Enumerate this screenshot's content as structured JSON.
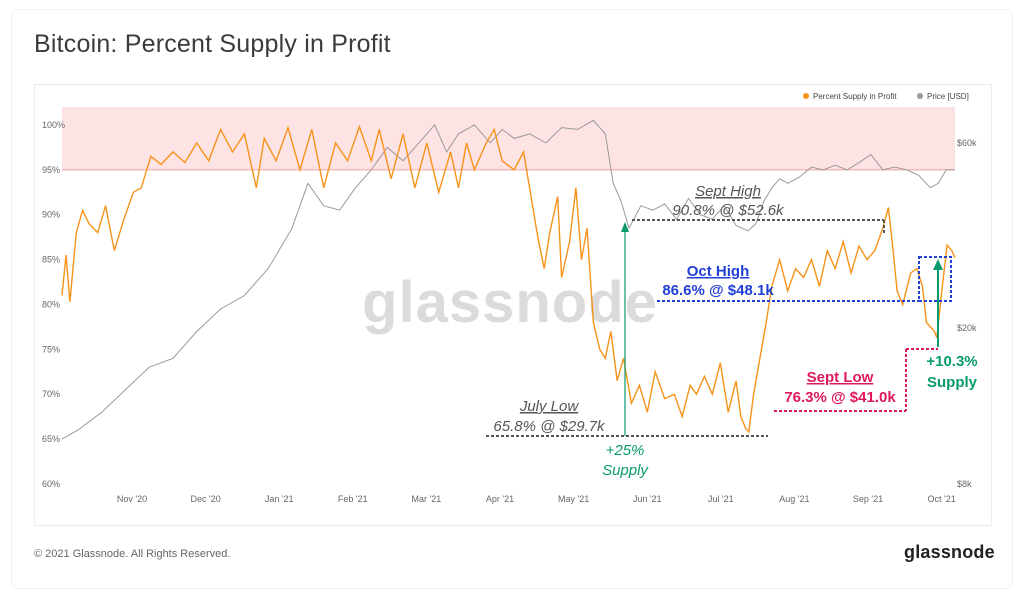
{
  "header": {
    "title": "Bitcoin: Percent Supply in Profit"
  },
  "footer": {
    "copyright": "© 2021 Glassnode. All Rights Reserved.",
    "brand": "glassnode"
  },
  "watermark": "glassnode",
  "colors": {
    "supply": "#F7931A",
    "price": "#9a9a9a",
    "band": "#fde3e3",
    "band_line": "#f0a0a0",
    "sept_high": "#555555",
    "oct_high": "#1f3fd6",
    "sept_low": "#e0195f",
    "green": "#0a9a6e"
  },
  "chart_data": {
    "type": "line",
    "title": "Bitcoin: Percent Supply in Profit",
    "legend": [
      "Percent Supply in Profit",
      "Price [USD]"
    ],
    "x_ticks": [
      "Nov '20",
      "Dec '20",
      "Jan '21",
      "Feb '21",
      "Mar '21",
      "Apr '21",
      "May '21",
      "Jun '21",
      "Jul '21",
      "Aug '21",
      "Sep '21",
      "Oct '21"
    ],
    "y_left": {
      "ticks": [
        "60%",
        "65%",
        "70%",
        "75%",
        "80%",
        "85%",
        "90%",
        "95%",
        "100%"
      ],
      "range": [
        60,
        103
      ]
    },
    "y_right": {
      "ticks": [
        "$8k",
        "$20k",
        "$60k"
      ],
      "scale": "log"
    },
    "highlight_band": {
      "from": 95,
      "to": 102
    },
    "series": [
      {
        "name": "Percent Supply in Profit",
        "axis": "left",
        "points": [
          [
            0,
            81
          ],
          [
            0.05,
            85.5
          ],
          [
            0.1,
            80.3
          ],
          [
            0.18,
            88
          ],
          [
            0.26,
            90.5
          ],
          [
            0.34,
            89
          ],
          [
            0.45,
            88
          ],
          [
            0.55,
            91
          ],
          [
            0.66,
            86
          ],
          [
            0.78,
            89.5
          ],
          [
            0.9,
            92.5
          ],
          [
            1.0,
            93
          ],
          [
            1.12,
            96.5
          ],
          [
            1.25,
            95.6
          ],
          [
            1.4,
            97
          ],
          [
            1.55,
            95.8
          ],
          [
            1.7,
            98
          ],
          [
            1.85,
            96
          ],
          [
            2.0,
            99.5
          ],
          [
            2.15,
            97
          ],
          [
            2.3,
            99
          ],
          [
            2.45,
            93
          ],
          [
            2.55,
            98.5
          ],
          [
            2.7,
            96
          ],
          [
            2.85,
            99.7
          ],
          [
            3.0,
            95
          ],
          [
            3.15,
            99.5
          ],
          [
            3.3,
            93
          ],
          [
            3.45,
            98
          ],
          [
            3.6,
            96
          ],
          [
            3.75,
            99.8
          ],
          [
            3.9,
            96
          ],
          [
            4.0,
            99.5
          ],
          [
            4.15,
            94
          ],
          [
            4.3,
            99
          ],
          [
            4.45,
            93
          ],
          [
            4.6,
            98
          ],
          [
            4.75,
            92.5
          ],
          [
            4.9,
            97
          ],
          [
            5.0,
            93
          ],
          [
            5.1,
            98
          ],
          [
            5.2,
            95
          ],
          [
            5.35,
            98
          ],
          [
            5.45,
            99.5
          ],
          [
            5.55,
            96
          ],
          [
            5.7,
            95
          ],
          [
            5.82,
            97
          ],
          [
            6.0,
            87.5
          ],
          [
            6.08,
            84
          ],
          [
            6.15,
            88
          ],
          [
            6.25,
            92
          ],
          [
            6.3,
            83
          ],
          [
            6.4,
            87
          ],
          [
            6.48,
            93
          ],
          [
            6.55,
            85
          ],
          [
            6.62,
            88.5
          ],
          [
            6.7,
            78
          ],
          [
            6.78,
            75
          ],
          [
            6.85,
            74
          ],
          [
            6.92,
            77
          ],
          [
            7.0,
            71.5
          ],
          [
            7.08,
            74
          ],
          [
            7.18,
            69
          ],
          [
            7.28,
            71
          ],
          [
            7.38,
            68
          ],
          [
            7.48,
            72.5
          ],
          [
            7.6,
            69.5
          ],
          [
            7.72,
            70
          ],
          [
            7.82,
            67.5
          ],
          [
            7.92,
            71
          ],
          [
            8.0,
            70
          ],
          [
            8.1,
            72
          ],
          [
            8.2,
            70
          ],
          [
            8.3,
            73.5
          ],
          [
            8.4,
            68
          ],
          [
            8.5,
            71.5
          ],
          [
            8.56,
            67.5
          ],
          [
            8.62,
            66.2
          ],
          [
            8.66,
            65.8
          ],
          [
            8.72,
            70
          ],
          [
            8.8,
            74
          ],
          [
            8.88,
            78
          ],
          [
            8.95,
            82
          ],
          [
            9.05,
            85
          ],
          [
            9.15,
            81.5
          ],
          [
            9.25,
            84
          ],
          [
            9.35,
            83
          ],
          [
            9.45,
            85
          ],
          [
            9.55,
            82
          ],
          [
            9.65,
            86
          ],
          [
            9.75,
            84
          ],
          [
            9.85,
            87
          ],
          [
            9.95,
            83.5
          ],
          [
            10.05,
            86.5
          ],
          [
            10.15,
            85
          ],
          [
            10.25,
            86
          ],
          [
            10.35,
            88.5
          ],
          [
            10.42,
            90.8
          ],
          [
            10.48,
            86
          ],
          [
            10.53,
            81.5
          ],
          [
            10.6,
            80
          ],
          [
            10.7,
            83.5
          ],
          [
            10.78,
            84
          ],
          [
            10.85,
            82
          ],
          [
            10.9,
            78
          ],
          [
            10.95,
            77.5
          ],
          [
            11.0,
            77
          ],
          [
            11.03,
            76.3
          ],
          [
            11.1,
            82
          ],
          [
            11.16,
            86.6
          ],
          [
            11.22,
            86
          ],
          [
            11.26,
            85.2
          ]
        ]
      },
      {
        "name": "Price [USD]",
        "axis": "right",
        "points": [
          [
            0,
            65
          ],
          [
            0.2,
            66
          ],
          [
            0.5,
            68
          ],
          [
            0.8,
            70.5
          ],
          [
            1.1,
            73
          ],
          [
            1.4,
            74
          ],
          [
            1.7,
            77
          ],
          [
            2.0,
            79.5
          ],
          [
            2.3,
            81
          ],
          [
            2.6,
            84
          ],
          [
            2.9,
            88.5
          ],
          [
            3.1,
            93.5
          ],
          [
            3.3,
            91
          ],
          [
            3.5,
            90.5
          ],
          [
            3.7,
            93
          ],
          [
            3.9,
            95
          ],
          [
            4.1,
            97.5
          ],
          [
            4.3,
            96
          ],
          [
            4.5,
            98
          ],
          [
            4.7,
            100
          ],
          [
            4.85,
            97
          ],
          [
            5.0,
            99
          ],
          [
            5.2,
            100
          ],
          [
            5.4,
            98
          ],
          [
            5.55,
            99.5
          ],
          [
            5.7,
            98.5
          ],
          [
            5.9,
            99
          ],
          [
            6.1,
            98
          ],
          [
            6.3,
            99.7
          ],
          [
            6.5,
            99.5
          ],
          [
            6.7,
            100.5
          ],
          [
            6.85,
            99
          ],
          [
            6.95,
            93.5
          ],
          [
            7.05,
            91.5
          ],
          [
            7.15,
            88.5
          ],
          [
            7.3,
            91
          ],
          [
            7.45,
            90.5
          ],
          [
            7.6,
            91.2
          ],
          [
            7.75,
            89.5
          ],
          [
            7.9,
            91.8
          ],
          [
            8.05,
            90
          ],
          [
            8.2,
            89.5
          ],
          [
            8.35,
            91
          ],
          [
            8.5,
            88.8
          ],
          [
            8.65,
            88.2
          ],
          [
            8.75,
            89
          ],
          [
            8.85,
            91.5
          ],
          [
            8.95,
            93
          ],
          [
            9.05,
            94
          ],
          [
            9.15,
            93.5
          ],
          [
            9.3,
            94.2
          ],
          [
            9.45,
            95.3
          ],
          [
            9.6,
            95
          ],
          [
            9.75,
            95.5
          ],
          [
            9.9,
            95
          ],
          [
            10.05,
            95.8
          ],
          [
            10.2,
            96.7
          ],
          [
            10.35,
            95
          ],
          [
            10.5,
            95.3
          ],
          [
            10.65,
            95
          ],
          [
            10.8,
            94.4
          ],
          [
            10.95,
            93
          ],
          [
            11.05,
            93.5
          ],
          [
            11.15,
            95
          ],
          [
            11.26,
            95
          ]
        ]
      }
    ],
    "annotations": [
      {
        "label": "Sept High",
        "detail": "90.8% @ $52.6k"
      },
      {
        "label": "Oct High",
        "detail": "86.6% @ $48.1k"
      },
      {
        "label": "Sept Low",
        "detail": "76.3% @ $41.0k"
      },
      {
        "label": "July Low",
        "detail": "65.8% @ $29.7k"
      },
      {
        "label": "+25%",
        "detail": "Supply"
      },
      {
        "label": "+10.3%",
        "detail": "Supply"
      }
    ]
  }
}
